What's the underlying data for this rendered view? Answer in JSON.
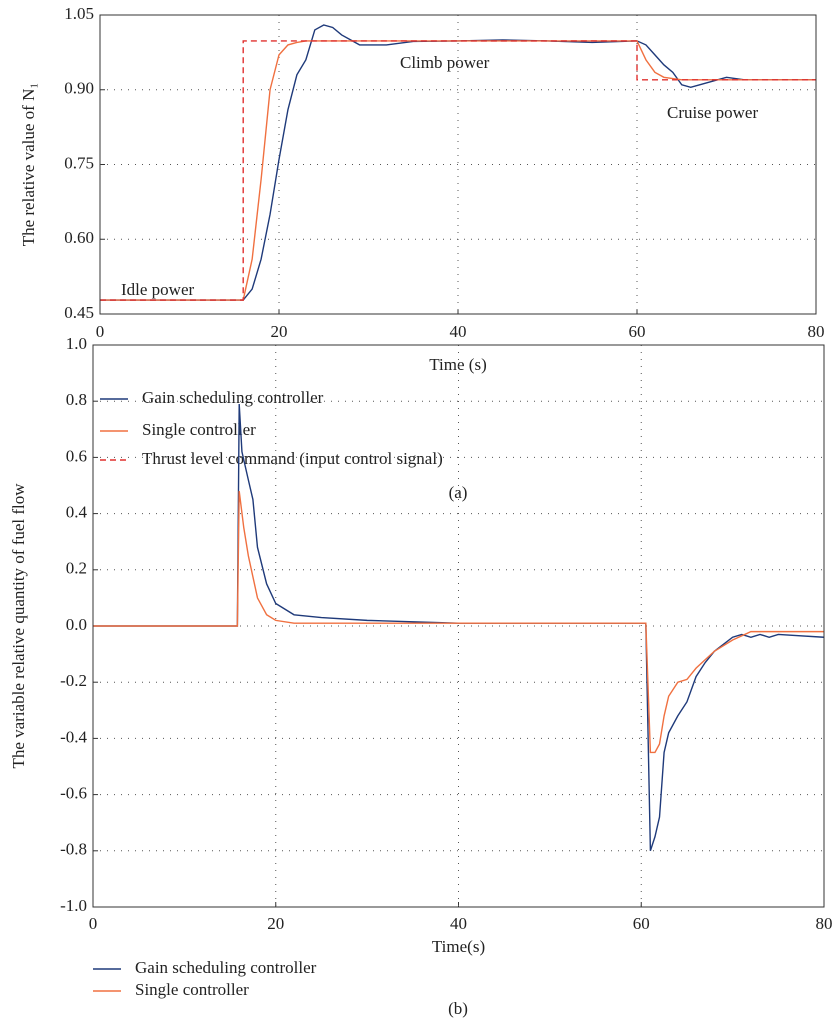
{
  "chart_data": [
    {
      "type": "line",
      "xlabel": "Time (s)",
      "ylabel": "The relative value of N₁",
      "caption": "(a)",
      "annotations": [
        "Idle power",
        "Climb power",
        "Cruise power"
      ],
      "xlim": [
        0,
        80
      ],
      "xticks": [
        0,
        20,
        40,
        60,
        80
      ],
      "ylim": [
        0.45,
        1.05
      ],
      "yticks": [
        0.45,
        {
          "value": 0.6,
          "label": "0.60"
        },
        0.75,
        {
          "value": 0.9,
          "label": "0.90"
        },
        1.05
      ],
      "grid": true,
      "series": [
        {
          "name": "Gain scheduling controller",
          "color": "#1f3a7a",
          "x": [
            0,
            16,
            17,
            18,
            19,
            20,
            21,
            22,
            23,
            24,
            25,
            26,
            27,
            28,
            29,
            30,
            32,
            35,
            40,
            45,
            50,
            55,
            60,
            61,
            62,
            63,
            64,
            65,
            66,
            67,
            68,
            70,
            72,
            75,
            80
          ],
          "values": [
            0.478,
            0.478,
            0.5,
            0.56,
            0.65,
            0.76,
            0.86,
            0.93,
            0.96,
            1.02,
            1.03,
            1.025,
            1.01,
            1.0,
            0.99,
            0.99,
            0.99,
            0.997,
            0.998,
            1.0,
            0.998,
            0.995,
            0.998,
            0.99,
            0.97,
            0.95,
            0.935,
            0.91,
            0.905,
            0.91,
            0.915,
            0.925,
            0.92,
            0.92,
            0.92
          ]
        },
        {
          "name": "Single controller",
          "color": "#f07040",
          "x": [
            0,
            16,
            17,
            18,
            19,
            20,
            21,
            22,
            23,
            25,
            30,
            40,
            50,
            60,
            61,
            62,
            63,
            65,
            70,
            80
          ],
          "values": [
            0.478,
            0.478,
            0.56,
            0.72,
            0.9,
            0.97,
            0.99,
            0.995,
            0.998,
            0.998,
            0.998,
            0.998,
            0.998,
            0.998,
            0.96,
            0.935,
            0.925,
            0.92,
            0.92,
            0.92
          ]
        },
        {
          "name": "Thrust level command (input control signal)",
          "color": "#e0302f",
          "dashed": true,
          "x": [
            0,
            16,
            16,
            60,
            60,
            80
          ],
          "values": [
            0.478,
            0.478,
            0.998,
            0.998,
            0.92,
            0.92
          ]
        }
      ]
    },
    {
      "type": "line",
      "xlabel": "Time(s)",
      "ylabel": "The variable relative quantity of fuel flow",
      "caption": "(b)",
      "xlim": [
        0,
        80
      ],
      "xticks": [
        0,
        20,
        40,
        60,
        80
      ],
      "ylim": [
        -1,
        1
      ],
      "yticks": [
        {
          "value": -1,
          "label": "-1.0"
        },
        -0.8,
        -0.6,
        -0.4,
        -0.2,
        {
          "value": 0,
          "label": "0.0"
        },
        0.2,
        0.4,
        0.6,
        0.8,
        {
          "value": 1,
          "label": "1.0"
        }
      ],
      "grid": true,
      "series": [
        {
          "name": "Gain scheduling controller",
          "color": "#1f3a7a",
          "x": [
            0,
            15.8,
            16,
            16.3,
            17,
            17.5,
            18,
            19,
            20,
            22,
            25,
            30,
            40,
            50,
            60,
            60.5,
            61,
            61.5,
            62,
            62.5,
            63,
            64,
            65,
            66,
            67,
            68,
            70,
            71,
            72,
            73,
            74,
            75,
            80
          ],
          "values": [
            0,
            0,
            0.79,
            0.62,
            0.52,
            0.45,
            0.28,
            0.15,
            0.08,
            0.04,
            0.03,
            0.02,
            0.01,
            0.01,
            0.01,
            0.01,
            -0.8,
            -0.75,
            -0.68,
            -0.45,
            -0.38,
            -0.32,
            -0.27,
            -0.18,
            -0.13,
            -0.09,
            -0.04,
            -0.03,
            -0.04,
            -0.03,
            -0.04,
            -0.03,
            -0.04
          ]
        },
        {
          "name": "Single controller",
          "color": "#f07040",
          "x": [
            0,
            15.8,
            16,
            16.5,
            17,
            18,
            19,
            20,
            22,
            30,
            40,
            60,
            60.5,
            61,
            61.5,
            62,
            62.5,
            63,
            64,
            65,
            66,
            68,
            70,
            72,
            80
          ],
          "values": [
            0,
            0,
            0.48,
            0.35,
            0.25,
            0.1,
            0.04,
            0.02,
            0.01,
            0.01,
            0.01,
            0.01,
            0.01,
            -0.45,
            -0.45,
            -0.42,
            -0.32,
            -0.25,
            -0.2,
            -0.19,
            -0.15,
            -0.09,
            -0.05,
            -0.02,
            -0.02
          ]
        }
      ]
    }
  ]
}
